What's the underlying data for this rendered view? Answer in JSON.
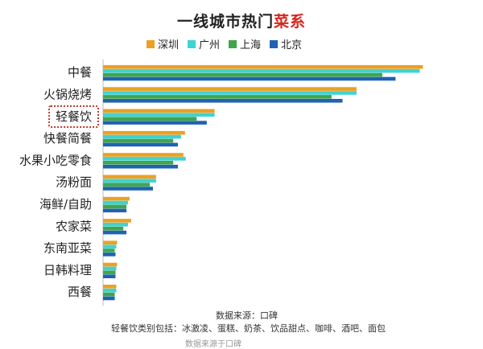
{
  "title_main": "一线城市热门",
  "title_accent": "菜系",
  "legend": [
    {
      "name": "深圳",
      "color": "#eea020"
    },
    {
      "name": "广州",
      "color": "#3ed3d3"
    },
    {
      "name": "上海",
      "color": "#3fa64a"
    },
    {
      "name": "北京",
      "color": "#1f62b4"
    }
  ],
  "highlighted_category": "轻餐饮",
  "footer": {
    "source": "数据来源：口碑",
    "note": "轻餐饮类别包括：冰激凌、蛋糕、奶茶、饮品甜点、咖啡、酒吧、面包",
    "cut_text": "数据来源于口碑"
  },
  "chart_data": {
    "type": "bar",
    "orientation": "horizontal",
    "title": "一线城市热门菜系",
    "categories": [
      "中餐",
      "火锅烧烤",
      "轻餐饮",
      "快餐简餐",
      "水果小吃零食",
      "汤粉面",
      "海鲜/自助",
      "农家菜",
      "东南亚菜",
      "日韩料理",
      "西餐"
    ],
    "series": [
      {
        "name": "深圳",
        "values": [
          410,
          325,
          143,
          105,
          103,
          68,
          34,
          36,
          18,
          18,
          17
        ]
      },
      {
        "name": "广州",
        "values": [
          406,
          325,
          143,
          100,
          106,
          68,
          32,
          32,
          17,
          17,
          17
        ]
      },
      {
        "name": "上海",
        "values": [
          358,
          293,
          120,
          90,
          90,
          60,
          30,
          26,
          15,
          16,
          15
        ]
      },
      {
        "name": "北京",
        "values": [
          375,
          307,
          133,
          96,
          96,
          64,
          30,
          30,
          16,
          16,
          15
        ]
      }
    ],
    "xlim": [
      0,
      420
    ],
    "grid": false,
    "legend_position": "top"
  }
}
